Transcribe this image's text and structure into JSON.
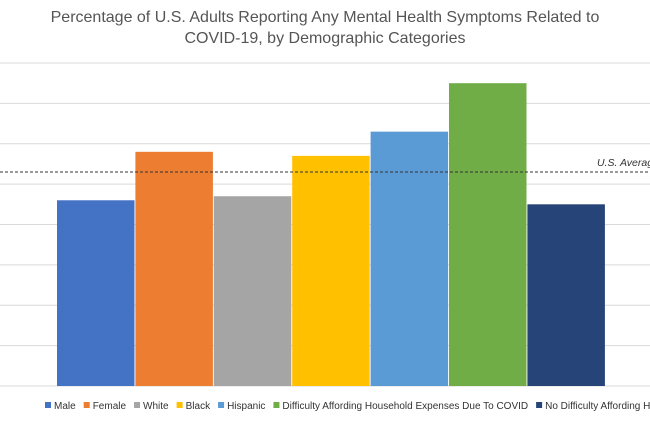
{
  "chart_data": {
    "type": "bar",
    "title_lines": [
      "Percentage of U.S. Adults Reporting Any Mental Health Symptoms Related to",
      "COVID-19, by Demographic Categories"
    ],
    "xlabel": "",
    "ylabel": "",
    "ylim": [
      0,
      80
    ],
    "y_gridlines": [
      10,
      20,
      30,
      40,
      50,
      60,
      70,
      80
    ],
    "grid": true,
    "legend_position": "bottom",
    "series": [
      {
        "name": "Male",
        "value": 46,
        "color": "#4472C4"
      },
      {
        "name": "Female",
        "value": 58,
        "color": "#ED7D31"
      },
      {
        "name": "White",
        "value": 47,
        "color": "#A5A5A5"
      },
      {
        "name": "Black",
        "value": 57,
        "color": "#FFC000"
      },
      {
        "name": "Hispanic",
        "value": 63,
        "color": "#5B9BD5"
      },
      {
        "name": "Difficulty Affording Household Expenses Due To COVID",
        "value": 75,
        "color": "#70AD47"
      },
      {
        "name": "No Difficulty Affording Household Expenses Due To COVID",
        "value": 45,
        "color": "#264478"
      }
    ],
    "reference_line": {
      "label": "U.S. Average",
      "value": 53
    }
  }
}
